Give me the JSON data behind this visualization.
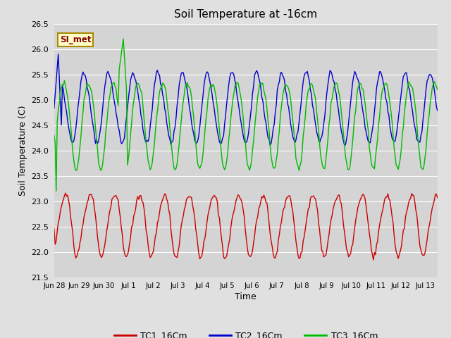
{
  "title": "Soil Temperature at -16cm",
  "xlabel": "Time",
  "ylabel": "Soil Temperature (C)",
  "ylim": [
    21.5,
    26.5
  ],
  "fig_bg_color": "#e0e0e0",
  "plot_bg_color": "#d4d4d4",
  "tc1_color": "#cc0000",
  "tc2_color": "#0000cc",
  "tc3_color": "#00bb00",
  "annotation_text": "SI_met",
  "annotation_bg": "#ffffcc",
  "annotation_border": "#aa8800",
  "legend_labels": [
    "TC1_16Cm",
    "TC2_16Cm",
    "TC3_16Cm"
  ],
  "xtick_labels": [
    "Jun 28",
    "Jun 29",
    "Jun 30",
    "Jul 1",
    "Jul 2",
    "Jul 3",
    "Jul 4",
    "Jul 5",
    "Jul 6",
    "Jul 7",
    "Jul 8",
    "Jul 9",
    "Jul 10",
    "Jul 11",
    "Jul 12",
    "Jul 13"
  ],
  "ytick_labels": [
    "21.5",
    "22.0",
    "22.5",
    "23.0",
    "23.5",
    "24.0",
    "24.5",
    "25.0",
    "25.5",
    "26.0",
    "26.5"
  ],
  "ytick_vals": [
    21.5,
    22.0,
    22.5,
    23.0,
    23.5,
    24.0,
    24.5,
    25.0,
    25.5,
    26.0,
    26.5
  ]
}
